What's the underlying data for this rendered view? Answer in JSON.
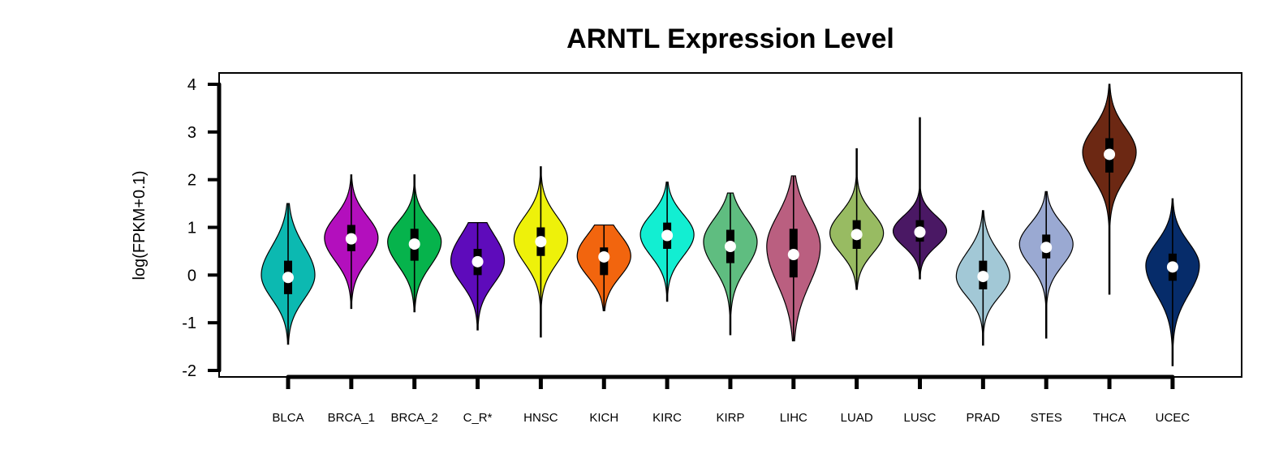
{
  "chart_data": {
    "type": "violin",
    "title": "ARNTL Expression Level",
    "xlabel": "",
    "ylabel": "log(FPKM+0.1)",
    "ylim": [
      -2,
      4
    ],
    "yticks": [
      -2,
      -1,
      0,
      1,
      2,
      3,
      4
    ],
    "ytick_labels": [
      "-2",
      "-1",
      "0",
      "1",
      "2",
      "3",
      "4"
    ],
    "categories": [
      "BLCA",
      "BRCA_1",
      "BRCA_2",
      "C_R*",
      "HNSC",
      "KICH",
      "KIRC",
      "KIRP",
      "LIHC",
      "LUAD",
      "LUSC",
      "PRAD",
      "STES",
      "THCA",
      "UCEC"
    ],
    "series": [
      {
        "category": "BLCA",
        "color": "#0cb9b1",
        "min": -1.45,
        "q1": -0.4,
        "median": -0.05,
        "q3": 0.3,
        "max": 1.5,
        "mode": 0.0,
        "sd_low": 0.5,
        "sd_high": 0.6
      },
      {
        "category": "BRCA_1",
        "color": "#b30fbd",
        "min": -0.7,
        "q1": 0.5,
        "median": 0.76,
        "q3": 1.05,
        "max": 2.1,
        "mode": 0.78,
        "sd_low": 0.48,
        "sd_high": 0.45
      },
      {
        "category": "BRCA_2",
        "color": "#06b34c",
        "min": -0.77,
        "q1": 0.3,
        "median": 0.65,
        "q3": 0.97,
        "max": 2.1,
        "mode": 0.7,
        "sd_low": 0.5,
        "sd_high": 0.42
      },
      {
        "category": "C_R*",
        "color": "#5e0bbb",
        "min": -1.15,
        "q1": 0.0,
        "median": 0.28,
        "q3": 0.55,
        "max": 1.1,
        "mode": 0.3,
        "sd_low": 0.48,
        "sd_high": 0.55
      },
      {
        "category": "HNSC",
        "color": "#eef10a",
        "min": -1.3,
        "q1": 0.4,
        "median": 0.7,
        "q3": 1.0,
        "max": 2.27,
        "mode": 0.75,
        "sd_low": 0.5,
        "sd_high": 0.48
      },
      {
        "category": "KICH",
        "color": "#f2650e",
        "min": -0.75,
        "q1": 0.0,
        "median": 0.38,
        "q3": 0.58,
        "max": 1.05,
        "mode": 0.4,
        "sd_low": 0.43,
        "sd_high": 0.45
      },
      {
        "category": "KIRC",
        "color": "#12eed2",
        "min": -0.55,
        "q1": 0.55,
        "median": 0.83,
        "q3": 1.1,
        "max": 1.95,
        "mode": 0.85,
        "sd_low": 0.45,
        "sd_high": 0.42
      },
      {
        "category": "KIRP",
        "color": "#5fbd80",
        "min": -1.25,
        "q1": 0.25,
        "median": 0.6,
        "q3": 0.95,
        "max": 1.72,
        "mode": 0.7,
        "sd_low": 0.55,
        "sd_high": 0.48
      },
      {
        "category": "LIHC",
        "color": "#ba5f80",
        "min": -1.38,
        "q1": -0.05,
        "median": 0.43,
        "q3": 0.97,
        "max": 2.08,
        "mode": 0.6,
        "sd_low": 0.78,
        "sd_high": 0.65
      },
      {
        "category": "LUAD",
        "color": "#98bb62",
        "min": -0.3,
        "q1": 0.55,
        "median": 0.85,
        "q3": 1.15,
        "max": 2.65,
        "mode": 0.88,
        "sd_low": 0.42,
        "sd_high": 0.42
      },
      {
        "category": "LUSC",
        "color": "#4a1864",
        "min": -0.08,
        "q1": 0.7,
        "median": 0.9,
        "q3": 1.15,
        "max": 3.3,
        "mode": 0.92,
        "sd_low": 0.32,
        "sd_high": 0.32
      },
      {
        "category": "PRAD",
        "color": "#a2c8d6",
        "min": -1.47,
        "q1": -0.3,
        "median": -0.03,
        "q3": 0.3,
        "max": 1.35,
        "mode": -0.03,
        "sd_low": 0.42,
        "sd_high": 0.5
      },
      {
        "category": "STES",
        "color": "#9aa9d2",
        "min": -1.32,
        "q1": 0.35,
        "median": 0.58,
        "q3": 0.85,
        "max": 1.75,
        "mode": 0.65,
        "sd_low": 0.45,
        "sd_high": 0.42
      },
      {
        "category": "THCA",
        "color": "#6c2813",
        "min": -0.4,
        "q1": 2.15,
        "median": 2.53,
        "q3": 2.87,
        "max": 4.0,
        "mode": 2.58,
        "sd_low": 0.55,
        "sd_high": 0.5
      },
      {
        "category": "UCEC",
        "color": "#062c6a",
        "min": -1.9,
        "q1": -0.12,
        "median": 0.17,
        "q3": 0.45,
        "max": 1.6,
        "mode": 0.2,
        "sd_low": 0.6,
        "sd_high": 0.48
      }
    ],
    "grid": false,
    "legend": "none"
  }
}
